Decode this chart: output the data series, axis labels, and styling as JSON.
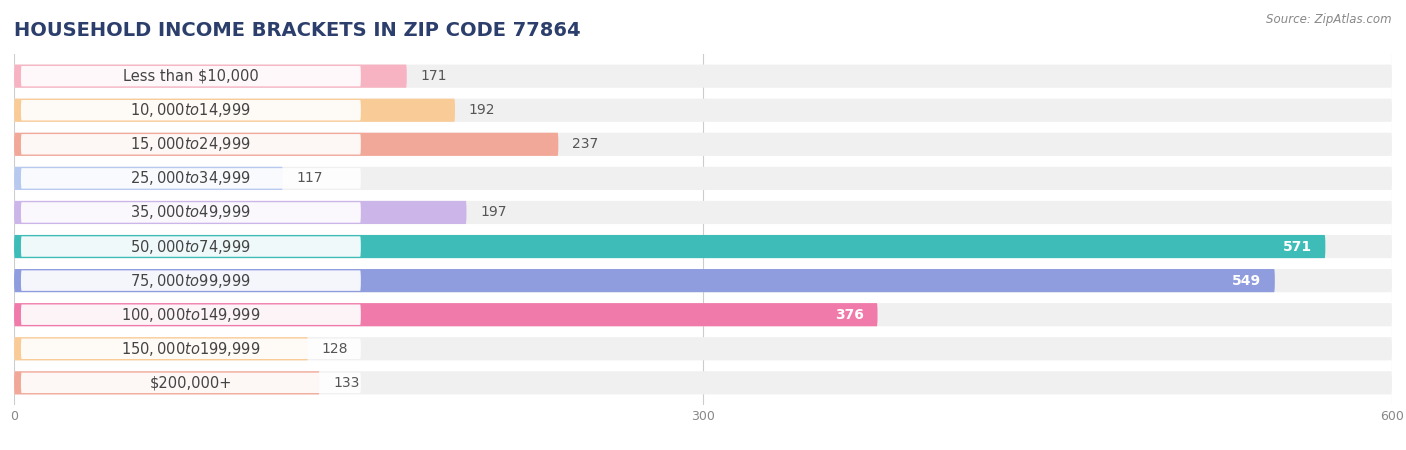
{
  "title": "HOUSEHOLD INCOME BRACKETS IN ZIP CODE 77864",
  "source": "Source: ZipAtlas.com",
  "categories": [
    "Less than $10,000",
    "$10,000 to $14,999",
    "$15,000 to $24,999",
    "$25,000 to $34,999",
    "$35,000 to $49,999",
    "$50,000 to $74,999",
    "$75,000 to $99,999",
    "$100,000 to $149,999",
    "$150,000 to $199,999",
    "$200,000+"
  ],
  "values": [
    171,
    192,
    237,
    117,
    197,
    571,
    549,
    376,
    128,
    133
  ],
  "bar_colors": [
    "#f7b3c2",
    "#f9cc97",
    "#f2a898",
    "#b8c9f0",
    "#ccb5e8",
    "#3dbcb8",
    "#8f9cdd",
    "#f07aaa",
    "#f9cc97",
    "#f2a898"
  ],
  "label_colors": [
    "dark",
    "dark",
    "dark",
    "dark",
    "dark",
    "white",
    "white",
    "white",
    "dark",
    "dark"
  ],
  "xlim": [
    0,
    600
  ],
  "xticks": [
    0,
    300,
    600
  ],
  "background_color": "#ffffff",
  "row_bg_color": "#f0f0f0",
  "title_fontsize": 14,
  "label_fontsize": 10.5,
  "value_fontsize": 10
}
